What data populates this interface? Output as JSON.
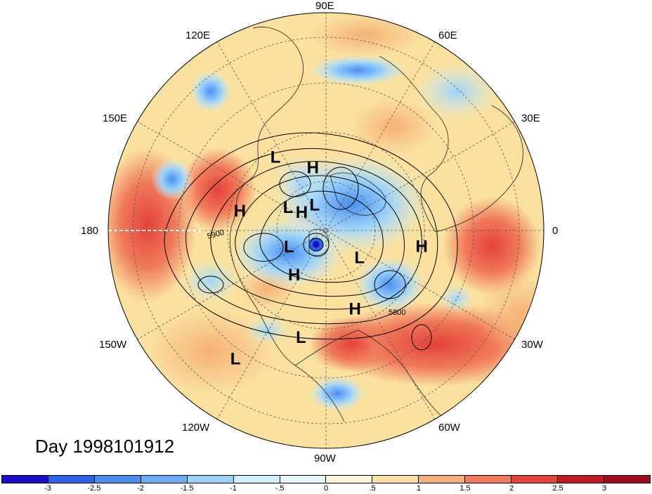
{
  "title": "Day 1998101912",
  "map_type": "north polar stereographic",
  "longitude_labels": [
    "90E",
    "60E",
    "30E",
    "0",
    "30W",
    "60W",
    "90W",
    "120W",
    "150W",
    "180",
    "150E",
    "120E"
  ],
  "colorbar": {
    "ticks": [
      "-3",
      "-2.5",
      "-2",
      "-1.5",
      "-1",
      "-.5",
      "0",
      ".5",
      "1",
      "1.5",
      "2",
      "2.5",
      "3"
    ],
    "colors": [
      "#1e0dc8",
      "#2a63e6",
      "#4a8ff0",
      "#6aaef5",
      "#9bd2fa",
      "#cceefc",
      "#eaf7fd",
      "#fdf6d8",
      "#fae1a0",
      "#f6b076",
      "#f07a5a",
      "#e3413a",
      "#c01a22",
      "#a00c1c"
    ]
  },
  "contour_labels": [
    "5900",
    "5800"
  ],
  "pressure_centers": [
    {
      "label": "L",
      "lon": 125,
      "lat": 30
    },
    {
      "label": "H",
      "lon": 102,
      "lat": 45
    },
    {
      "label": "L",
      "lon": 115,
      "lat": 70
    },
    {
      "label": "L",
      "lon": 150,
      "lat": 58
    },
    {
      "label": "H",
      "lon": 168,
      "lat": 30
    },
    {
      "label": "H",
      "lon": 145,
      "lat": 68
    },
    {
      "label": "L",
      "lon": -155,
      "lat": 60
    },
    {
      "label": "H",
      "lon": -125,
      "lat": 50
    },
    {
      "label": "L",
      "lon": -40,
      "lat": 58
    },
    {
      "label": "H",
      "lon": -10,
      "lat": 25
    },
    {
      "label": "H",
      "lon": -70,
      "lat": 32
    },
    {
      "label": "L",
      "lon": -103,
      "lat": 18
    },
    {
      "label": "L",
      "lon": -125,
      "lat": -2
    }
  ]
}
